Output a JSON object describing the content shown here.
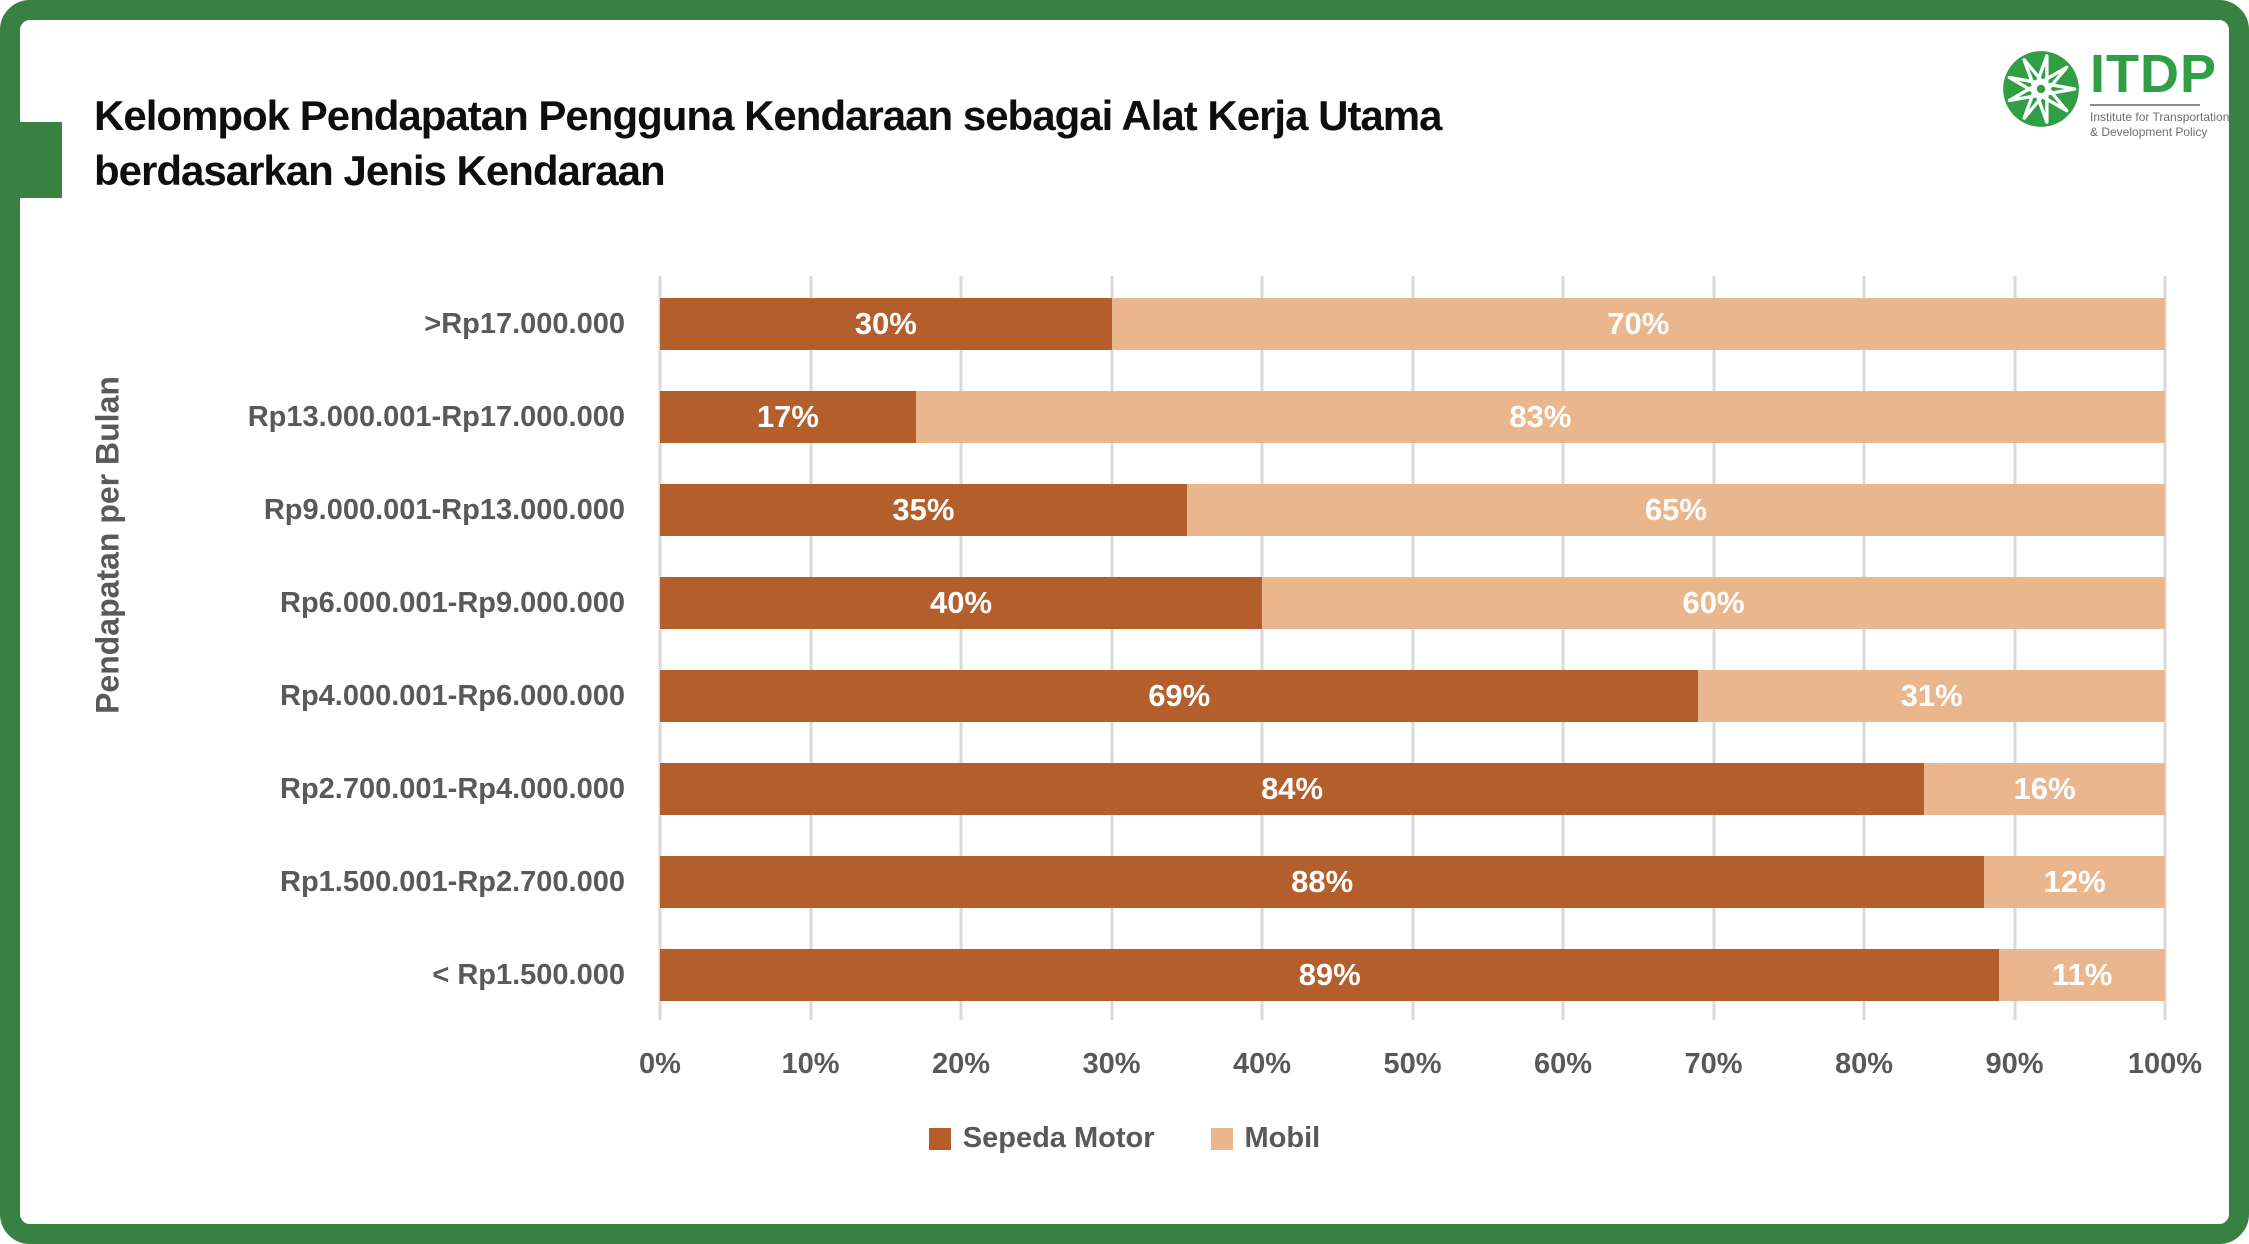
{
  "header": {
    "title_line1": "Kelompok Pendapatan Pengguna Kendaraan sebagai Alat Kerja Utama",
    "title_line2": "berdasarkan Jenis Kendaraan"
  },
  "logo": {
    "name": "ITDP",
    "subtitle_line1": "Institute for Transportation",
    "subtitle_line2": "& Development Policy",
    "green": "#2f9e44",
    "gray": "#6d6e71"
  },
  "theme": {
    "frame_green": "#388140",
    "background": "#ffffff",
    "title_text": "#0e0e0e",
    "axis_text": "#595959",
    "gridline": "#d9d9d9",
    "bar_value_text": "#ffffff"
  },
  "chart_data": {
    "type": "bar",
    "orientation": "horizontal_stacked",
    "title": "Kelompok Pendapatan Pengguna Kendaraan sebagai Alat Kerja Utama berdasarkan Jenis Kendaraan",
    "ylabel": "Pendapatan per Bulan",
    "categories": [
      ">Rp17.000.000",
      "Rp13.000.001-Rp17.000.000",
      "Rp9.000.001-Rp13.000.000",
      "Rp6.000.001-Rp9.000.000",
      "Rp4.000.001-Rp6.000.000",
      "Rp2.700.001-Rp4.000.000",
      "Rp1.500.001-Rp2.700.000",
      "< Rp1.500.000"
    ],
    "series": [
      {
        "name": "Sepeda Motor",
        "color": "#b45e2b",
        "values": [
          30,
          17,
          35,
          40,
          69,
          84,
          88,
          89
        ]
      },
      {
        "name": "Mobil",
        "color": "#eab68e",
        "values": [
          70,
          83,
          65,
          60,
          31,
          16,
          12,
          11
        ]
      }
    ],
    "value_suffix": "%",
    "x_ticks": [
      "0%",
      "10%",
      "20%",
      "30%",
      "40%",
      "50%",
      "60%",
      "70%",
      "80%",
      "90%",
      "100%"
    ],
    "xlim": [
      0,
      100
    ],
    "grid": true,
    "legend_position": "bottom"
  }
}
